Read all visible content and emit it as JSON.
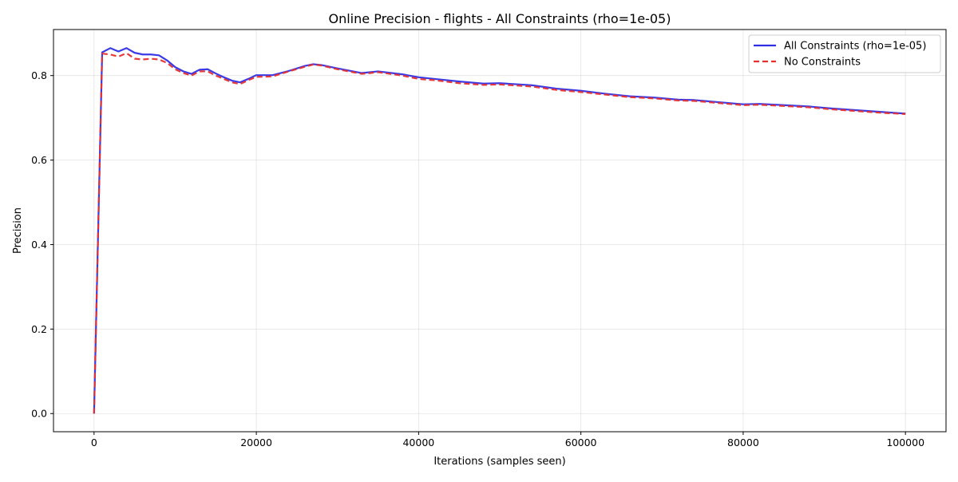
{
  "chart_data": {
    "type": "line",
    "title": "Online Precision - flights - All Constraints (rho=1e-05)",
    "xlabel": "Iterations (samples seen)",
    "ylabel": "Precision",
    "xlim": [
      -5000,
      105000
    ],
    "ylim": [
      -0.043,
      0.909
    ],
    "xticks": [
      0,
      20000,
      40000,
      60000,
      80000,
      100000
    ],
    "xtick_labels": [
      "0",
      "20000",
      "40000",
      "60000",
      "80000",
      "100000"
    ],
    "yticks": [
      0.0,
      0.2,
      0.4,
      0.6,
      0.8
    ],
    "ytick_labels": [
      "0.0",
      "0.2",
      "0.4",
      "0.6",
      "0.8"
    ],
    "grid": true,
    "legend_position": "top-right",
    "series": [
      {
        "name": "All Constraints (rho=1e-05)",
        "color": "#2f2fe6",
        "line_style": "solid",
        "points": [
          [
            0,
            0.0
          ],
          [
            1000,
            0.855
          ],
          [
            2000,
            0.865
          ],
          [
            3000,
            0.857
          ],
          [
            4000,
            0.865
          ],
          [
            5000,
            0.854
          ],
          [
            6000,
            0.85
          ],
          [
            7000,
            0.85
          ],
          [
            8000,
            0.848
          ],
          [
            9000,
            0.836
          ],
          [
            10000,
            0.82
          ],
          [
            11000,
            0.81
          ],
          [
            12000,
            0.804
          ],
          [
            13000,
            0.814
          ],
          [
            14000,
            0.815
          ],
          [
            15000,
            0.805
          ],
          [
            16000,
            0.796
          ],
          [
            17000,
            0.788
          ],
          [
            18000,
            0.784
          ],
          [
            19000,
            0.792
          ],
          [
            20000,
            0.801
          ],
          [
            22000,
            0.801
          ],
          [
            24000,
            0.811
          ],
          [
            26000,
            0.823
          ],
          [
            27000,
            0.827
          ],
          [
            28000,
            0.825
          ],
          [
            30000,
            0.817
          ],
          [
            33000,
            0.806
          ],
          [
            35000,
            0.81
          ],
          [
            38000,
            0.803
          ],
          [
            40000,
            0.796
          ],
          [
            42000,
            0.792
          ],
          [
            45000,
            0.786
          ],
          [
            48000,
            0.781
          ],
          [
            50000,
            0.782
          ],
          [
            54000,
            0.777
          ],
          [
            57000,
            0.769
          ],
          [
            60000,
            0.764
          ],
          [
            63000,
            0.757
          ],
          [
            66000,
            0.751
          ],
          [
            69000,
            0.748
          ],
          [
            72000,
            0.743
          ],
          [
            74000,
            0.742
          ],
          [
            77000,
            0.737
          ],
          [
            80000,
            0.732
          ],
          [
            82000,
            0.733
          ],
          [
            85000,
            0.73
          ],
          [
            88000,
            0.727
          ],
          [
            91000,
            0.722
          ],
          [
            94000,
            0.718
          ],
          [
            97000,
            0.714
          ],
          [
            100000,
            0.71
          ]
        ]
      },
      {
        "name": "No Constraints",
        "color": "#e62f2f",
        "line_style": "dashed",
        "points": [
          [
            0,
            0.0
          ],
          [
            1000,
            0.852
          ],
          [
            2000,
            0.85
          ],
          [
            3000,
            0.845
          ],
          [
            4000,
            0.853
          ],
          [
            5000,
            0.84
          ],
          [
            6000,
            0.838
          ],
          [
            7000,
            0.84
          ],
          [
            8000,
            0.838
          ],
          [
            9000,
            0.83
          ],
          [
            10000,
            0.815
          ],
          [
            11000,
            0.806
          ],
          [
            12000,
            0.8
          ],
          [
            13000,
            0.81
          ],
          [
            14000,
            0.81
          ],
          [
            15000,
            0.8
          ],
          [
            16000,
            0.792
          ],
          [
            17000,
            0.784
          ],
          [
            18000,
            0.78
          ],
          [
            19000,
            0.789
          ],
          [
            20000,
            0.797
          ],
          [
            22000,
            0.798
          ],
          [
            24000,
            0.81
          ],
          [
            26000,
            0.821
          ],
          [
            27000,
            0.826
          ],
          [
            28000,
            0.824
          ],
          [
            30000,
            0.815
          ],
          [
            33000,
            0.804
          ],
          [
            35000,
            0.808
          ],
          [
            38000,
            0.8
          ],
          [
            40000,
            0.792
          ],
          [
            42000,
            0.789
          ],
          [
            45000,
            0.782
          ],
          [
            48000,
            0.778
          ],
          [
            50000,
            0.779
          ],
          [
            54000,
            0.774
          ],
          [
            57000,
            0.766
          ],
          [
            60000,
            0.761
          ],
          [
            63000,
            0.755
          ],
          [
            66000,
            0.749
          ],
          [
            69000,
            0.746
          ],
          [
            72000,
            0.741
          ],
          [
            74000,
            0.74
          ],
          [
            77000,
            0.735
          ],
          [
            80000,
            0.73
          ],
          [
            82000,
            0.731
          ],
          [
            85000,
            0.728
          ],
          [
            88000,
            0.725
          ],
          [
            91000,
            0.72
          ],
          [
            94000,
            0.716
          ],
          [
            97000,
            0.712
          ],
          [
            100000,
            0.709
          ]
        ]
      }
    ]
  }
}
